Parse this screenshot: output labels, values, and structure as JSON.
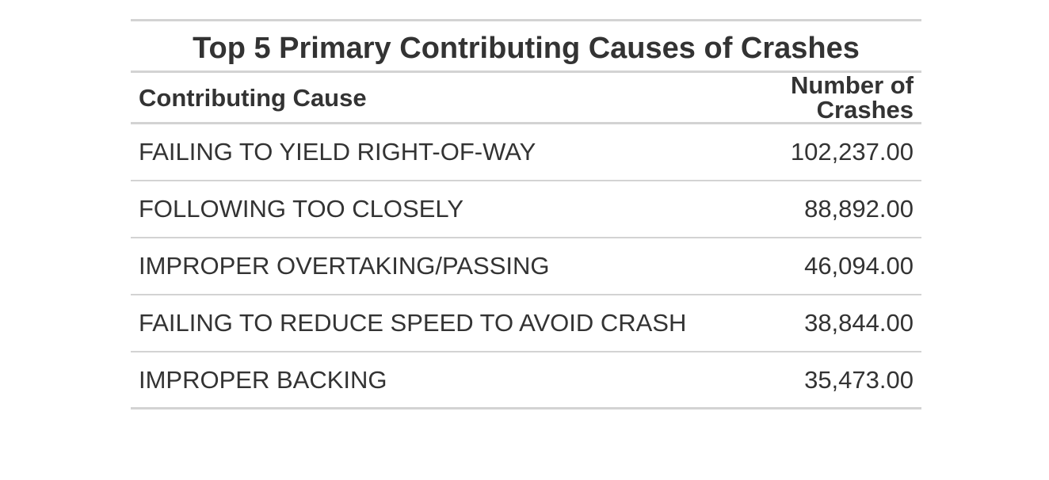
{
  "table": {
    "title": "Top 5 Primary Contributing Causes of Crashes",
    "columns": [
      "Contributing Cause",
      "Number of Crashes"
    ],
    "rows": [
      {
        "cause": "FAILING TO YIELD RIGHT-OF-WAY",
        "count": "102,237.00"
      },
      {
        "cause": "FOLLOWING TOO CLOSELY",
        "count": "88,892.00"
      },
      {
        "cause": "IMPROPER OVERTAKING/PASSING",
        "count": "46,094.00"
      },
      {
        "cause": "FAILING TO REDUCE SPEED TO AVOID CRASH",
        "count": "38,844.00"
      },
      {
        "cause": "IMPROPER BACKING",
        "count": "35,473.00"
      }
    ]
  },
  "chart_data": {
    "type": "table",
    "title": "Top 5 Primary Contributing Causes of Crashes",
    "columns": [
      "Contributing Cause",
      "Number of Crashes"
    ],
    "categories": [
      "FAILING TO YIELD RIGHT-OF-WAY",
      "FOLLOWING TOO CLOSELY",
      "IMPROPER OVERTAKING/PASSING",
      "FAILING TO REDUCE SPEED TO AVOID CRASH",
      "IMPROPER BACKING"
    ],
    "values": [
      102237,
      88892,
      46094,
      38844,
      35473
    ]
  }
}
